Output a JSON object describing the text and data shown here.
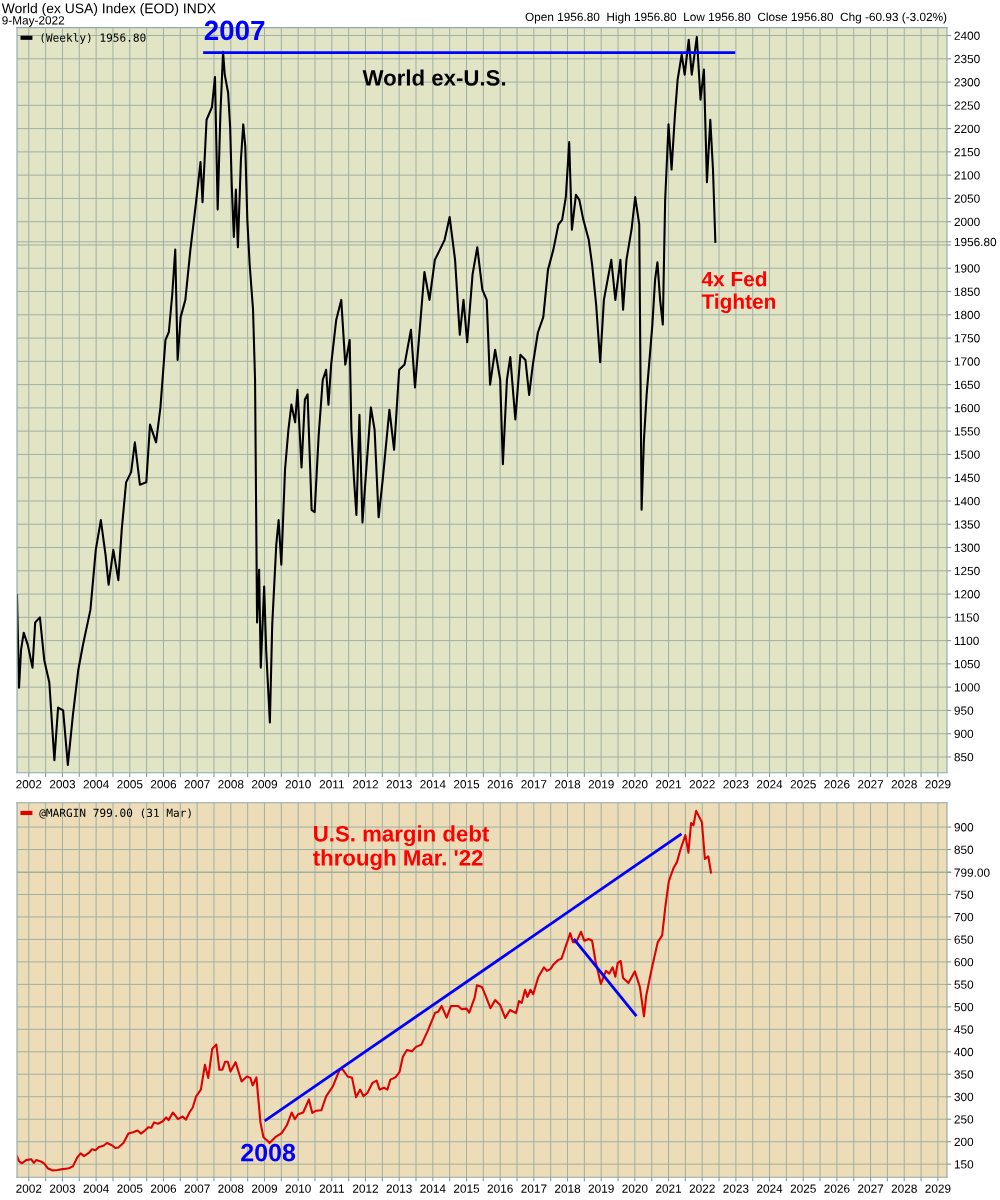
{
  "chart_data": [
    {
      "type": "line",
      "title": "World (ex USA) Index (EOD) INDX",
      "subtitle": "9-May-2022",
      "annotations": [
        "Open 1956.80  High 1956.80  Low 1956.80  Close 1956.80  Chg -60.93 (-3.02%)",
        "2007",
        "World ex-U.S.",
        "4x Fed\nTighten"
      ],
      "xlim": [
        2001.65,
        2029.27
      ],
      "xticks": [
        2002,
        {
          "value": 2002.5,
          "label": null
        },
        2003,
        {
          "value": 2003.5,
          "label": null
        },
        2004,
        {
          "value": 2004.5,
          "label": null
        },
        2005,
        {
          "value": 2005.5,
          "label": null
        },
        2006,
        {
          "value": 2006.5,
          "label": null
        },
        2007,
        {
          "value": 2007.5,
          "label": null
        },
        2008,
        {
          "value": 2008.5,
          "label": null
        },
        2009,
        {
          "value": 2009.5,
          "label": null
        },
        2010,
        {
          "value": 2010.5,
          "label": null
        },
        2011,
        {
          "value": 2011.5,
          "label": null
        },
        2012,
        {
          "value": 2012.5,
          "label": null
        },
        2013,
        {
          "value": 2013.5,
          "label": null
        },
        2014,
        {
          "value": 2014.5,
          "label": null
        },
        2015,
        {
          "value": 2015.5,
          "label": null
        },
        2016,
        {
          "value": 2016.5,
          "label": null
        },
        2017,
        {
          "value": 2017.5,
          "label": null
        },
        2018,
        {
          "value": 2018.5,
          "label": null
        },
        2019,
        {
          "value": 2019.5,
          "label": null
        },
        2020,
        {
          "value": 2020.5,
          "label": null
        },
        2021,
        {
          "value": 2021.5,
          "label": null
        },
        2022,
        {
          "value": 2022.5,
          "label": null
        },
        2023,
        {
          "value": 2023.5,
          "label": null
        },
        2024,
        {
          "value": 2024.5,
          "label": null
        },
        2025,
        {
          "value": 2025.5,
          "label": null
        },
        2026,
        {
          "value": 2026.5,
          "label": null
        },
        2027,
        {
          "value": 2027.5,
          "label": null
        },
        2028,
        {
          "value": 2028.5,
          "label": null
        },
        2029
      ],
      "ylim": [
        816,
        2417
      ],
      "yticks": [
        850,
        900,
        950,
        1000,
        1050,
        1100,
        1150,
        1200,
        1250,
        1300,
        1350,
        1400,
        1450,
        1500,
        1550,
        1600,
        1650,
        1700,
        1750,
        1800,
        1850,
        1900,
        {
          "value": 1950,
          "label": null
        },
        {
          "value": 1956.8,
          "label": "1956.80"
        },
        2000,
        2050,
        2100,
        2150,
        2200,
        2250,
        2300,
        2350,
        2400
      ],
      "grid": true,
      "legend": "top left",
      "series": [
        {
          "name": "(Weekly) 1956.80",
          "color": "#000000",
          "x": [
            2001.65,
            2001.71,
            2001.77,
            2001.85,
            2001.97,
            2002.11,
            2002.19,
            2002.33,
            2002.46,
            2002.61,
            2002.76,
            2002.87,
            2003.02,
            2003.16,
            2003.31,
            2003.47,
            2003.61,
            2003.83,
            2003.99,
            2004.14,
            2004.28,
            2004.37,
            2004.51,
            2004.66,
            2004.76,
            2004.89,
            2005.04,
            2005.15,
            2005.3,
            2005.49,
            2005.6,
            2005.78,
            2005.91,
            2006.06,
            2006.16,
            2006.26,
            2006.35,
            2006.42,
            2006.51,
            2006.65,
            2006.8,
            2006.96,
            2007.1,
            2007.16,
            2007.28,
            2007.44,
            2007.53,
            2007.61,
            2007.69,
            2007.77,
            2007.82,
            2007.92,
            2007.98,
            2008.03,
            2008.09,
            2008.15,
            2008.21,
            2008.3,
            2008.37,
            2008.43,
            2008.49,
            2008.56,
            2008.66,
            2008.72,
            2008.78,
            2008.84,
            2008.89,
            2008.99,
            2009.05,
            2009.16,
            2009.23,
            2009.35,
            2009.42,
            2009.5,
            2009.61,
            2009.71,
            2009.8,
            2009.91,
            2009.98,
            2010.1,
            2010.2,
            2010.28,
            2010.4,
            2010.49,
            2010.61,
            2010.73,
            2010.83,
            2010.9,
            2010.98,
            2011.13,
            2011.28,
            2011.4,
            2011.53,
            2011.58,
            2011.66,
            2011.73,
            2011.82,
            2011.91,
            2012.0,
            2012.16,
            2012.27,
            2012.39,
            2012.51,
            2012.71,
            2012.85,
            2013.0,
            2013.16,
            2013.35,
            2013.47,
            2013.61,
            2013.75,
            2013.9,
            2014.06,
            2014.21,
            2014.35,
            2014.5,
            2014.66,
            2014.8,
            2014.91,
            2015.02,
            2015.18,
            2015.32,
            2015.47,
            2015.6,
            2015.7,
            2015.85,
            2016.0,
            2016.08,
            2016.2,
            2016.3,
            2016.45,
            2016.6,
            2016.75,
            2016.86,
            2016.97,
            2017.12,
            2017.28,
            2017.42,
            2017.58,
            2017.73,
            2017.84,
            2017.95,
            2018.05,
            2018.13,
            2018.25,
            2018.35,
            2018.47,
            2018.63,
            2018.73,
            2018.85,
            2018.97,
            2019.08,
            2019.3,
            2019.42,
            2019.57,
            2019.65,
            2019.75,
            2019.9,
            2020.01,
            2020.13,
            2020.2,
            2020.27,
            2020.35,
            2020.52,
            2020.6,
            2020.67,
            2020.75,
            2020.83,
            2020.86,
            2020.9,
            2021.0,
            2021.09,
            2021.19,
            2021.27,
            2021.39,
            2021.48,
            2021.6,
            2021.69,
            2021.84,
            2021.95,
            2022.05,
            2022.14,
            2022.24,
            2022.32,
            2022.39
          ],
          "values": [
            1198,
            999,
            1080,
            1117,
            1091,
            1042,
            1139,
            1150,
            1058,
            1010,
            843,
            956,
            950,
            833,
            940,
            1037,
            1091,
            1166,
            1295,
            1359,
            1284,
            1220,
            1295,
            1230,
            1338,
            1440,
            1462,
            1526,
            1435,
            1440,
            1564,
            1526,
            1601,
            1746,
            1763,
            1843,
            1940,
            1703,
            1795,
            1832,
            1940,
            2037,
            2128,
            2042,
            2219,
            2246,
            2311,
            2026,
            2230,
            2365,
            2316,
            2277,
            2203,
            2074,
            1967,
            2069,
            1945,
            2133,
            2209,
            2161,
            2004,
            1908,
            1811,
            1660,
            1139,
            1252,
            1042,
            1216,
            1080,
            924,
            1134,
            1306,
            1359,
            1263,
            1467,
            1553,
            1607,
            1569,
            1639,
            1472,
            1618,
            1629,
            1381,
            1376,
            1542,
            1660,
            1682,
            1607,
            1693,
            1789,
            1832,
            1693,
            1746,
            1553,
            1445,
            1370,
            1585,
            1354,
            1445,
            1601,
            1553,
            1365,
            1445,
            1596,
            1510,
            1682,
            1693,
            1768,
            1644,
            1768,
            1892,
            1832,
            1918,
            1940,
            1961,
            2010,
            1918,
            1757,
            1832,
            1741,
            1887,
            1945,
            1854,
            1832,
            1650,
            1725,
            1660,
            1479,
            1660,
            1709,
            1575,
            1714,
            1703,
            1628,
            1693,
            1762,
            1795,
            1897,
            1940,
            1994,
            2004,
            2053,
            2171,
            1983,
            2058,
            2047,
            2004,
            1961,
            1908,
            1822,
            1698,
            1832,
            1918,
            1832,
            1918,
            1811,
            1918,
            1983,
            2053,
            1994,
            1381,
            1532,
            1629,
            1779,
            1875,
            1913,
            1832,
            1779,
            1897,
            2047,
            2209,
            2112,
            2230,
            2305,
            2359,
            2316,
            2391,
            2316,
            2397,
            2262,
            2327,
            2085,
            2219,
            2112,
            1956.8
          ],
          "value_labels": [
            null,
            null,
            null,
            null,
            null,
            null,
            null,
            null,
            null,
            null,
            null,
            null,
            null,
            null,
            null,
            null,
            null,
            null,
            null,
            null,
            null,
            null,
            null,
            null,
            null,
            null,
            null,
            null,
            null,
            null,
            null,
            null,
            null,
            null,
            null,
            null,
            null,
            null,
            null,
            null,
            null,
            null,
            null,
            null,
            null,
            null,
            null,
            null,
            null,
            null,
            null,
            null,
            null,
            null,
            null,
            null,
            null,
            null,
            null,
            null,
            null,
            null,
            null,
            null,
            null,
            null,
            null,
            null,
            null,
            null,
            null,
            null,
            null,
            null,
            null,
            null,
            null,
            null,
            null,
            null,
            null,
            null,
            null,
            null,
            null,
            null,
            null,
            null,
            null,
            null,
            null,
            null,
            null,
            null,
            null,
            null,
            null,
            null,
            null,
            null,
            null,
            null,
            null,
            null,
            null,
            null,
            null,
            null,
            null,
            null,
            null,
            null,
            null,
            null,
            null,
            null,
            null,
            null,
            null,
            null,
            null,
            null,
            null,
            null,
            null,
            null,
            null,
            null,
            null,
            null,
            null,
            null,
            null,
            null,
            null,
            null,
            null,
            null,
            null,
            null,
            null,
            null,
            null,
            null,
            null,
            null,
            null,
            null,
            null,
            null,
            null,
            null,
            null,
            null,
            null,
            null,
            null,
            null,
            null,
            null,
            null,
            null,
            null,
            null,
            null,
            null,
            null,
            null,
            null,
            null,
            null,
            null,
            null,
            null,
            null,
            null,
            null,
            null,
            null,
            null,
            null,
            null,
            null,
            null,
            null
          ]
        },
        {
          "color": "#0000ff",
          "x": [
            2007.22,
            2022.94
          ],
          "values": [
            2363,
            2363
          ]
        }
      ]
    },
    {
      "type": "line",
      "annotations": [
        "U.S. margin debt\nthrough Mar. '22",
        "2008"
      ],
      "xlim": [
        2001.65,
        2029.27
      ],
      "xticks": [
        2002,
        {
          "value": 2002.5,
          "label": null
        },
        2003,
        {
          "value": 2003.5,
          "label": null
        },
        2004,
        {
          "value": 2004.5,
          "label": null
        },
        2005,
        {
          "value": 2005.5,
          "label": null
        },
        2006,
        {
          "value": 2006.5,
          "label": null
        },
        2007,
        {
          "value": 2007.5,
          "label": null
        },
        2008,
        {
          "value": 2008.5,
          "label": null
        },
        2009,
        {
          "value": 2009.5,
          "label": null
        },
        2010,
        {
          "value": 2010.5,
          "label": null
        },
        2011,
        {
          "value": 2011.5,
          "label": null
        },
        2012,
        {
          "value": 2012.5,
          "label": null
        },
        2013,
        {
          "value": 2013.5,
          "label": null
        },
        2014,
        {
          "value": 2014.5,
          "label": null
        },
        2015,
        {
          "value": 2015.5,
          "label": null
        },
        2016,
        {
          "value": 2016.5,
          "label": null
        },
        2017,
        {
          "value": 2017.5,
          "label": null
        },
        2018,
        {
          "value": 2018.5,
          "label": null
        },
        2019,
        {
          "value": 2019.5,
          "label": null
        },
        2020,
        {
          "value": 2020.5,
          "label": null
        },
        2021,
        {
          "value": 2021.5,
          "label": null
        },
        2022,
        {
          "value": 2022.5,
          "label": null
        },
        2023,
        {
          "value": 2023.5,
          "label": null
        },
        2024,
        {
          "value": 2024.5,
          "label": null
        },
        2025,
        {
          "value": 2025.5,
          "label": null
        },
        2026,
        {
          "value": 2026.5,
          "label": null
        },
        2027,
        {
          "value": 2027.5,
          "label": null
        },
        2028,
        {
          "value": 2028.5,
          "label": null
        },
        2029
      ],
      "ylim": [
        121,
        954
      ],
      "yticks": [
        150,
        200,
        250,
        300,
        350,
        400,
        450,
        500,
        550,
        600,
        650,
        700,
        750,
        {
          "value": 799,
          "label": "799.00"
        },
        {
          "value": 800,
          "label": null
        },
        850,
        900
      ],
      "grid": true,
      "legend": "top left",
      "series": [
        {
          "name": "@MARGIN 799.00 (31 Mar)",
          "color": "#e00000",
          "x": [
            2001.65,
            2001.71,
            2001.8,
            2001.92,
            2002.07,
            2002.15,
            2002.22,
            2002.36,
            2002.46,
            2002.56,
            2002.71,
            2002.85,
            2003.0,
            2003.1,
            2003.19,
            2003.31,
            2003.44,
            2003.54,
            2003.64,
            2003.78,
            2003.88,
            2003.98,
            2004.08,
            2004.22,
            2004.32,
            2004.47,
            2004.57,
            2004.66,
            2004.81,
            2004.96,
            2005.1,
            2005.23,
            2005.33,
            2005.45,
            2005.55,
            2005.64,
            2005.72,
            2005.84,
            2005.97,
            2006.08,
            2006.15,
            2006.28,
            2006.43,
            2006.57,
            2006.67,
            2006.77,
            2006.87,
            2006.97,
            2007.11,
            2007.23,
            2007.33,
            2007.45,
            2007.57,
            2007.66,
            2007.75,
            2007.83,
            2007.91,
            2007.99,
            2008.14,
            2008.32,
            2008.48,
            2008.58,
            2008.65,
            2008.76,
            2008.88,
            2008.97,
            2009.07,
            2009.15,
            2009.32,
            2009.51,
            2009.66,
            2009.81,
            2009.9,
            2010.0,
            2010.15,
            2010.32,
            2010.42,
            2010.54,
            2010.69,
            2010.83,
            2011.03,
            2011.23,
            2011.32,
            2011.47,
            2011.6,
            2011.72,
            2011.84,
            2011.94,
            2012.06,
            2012.21,
            2012.33,
            2012.42,
            2012.55,
            2012.65,
            2012.74,
            2012.89,
            2013.01,
            2013.11,
            2013.23,
            2013.38,
            2013.5,
            2013.66,
            2013.85,
            2014.07,
            2014.16,
            2014.26,
            2014.41,
            2014.54,
            2014.75,
            2014.85,
            2015.0,
            2015.08,
            2015.24,
            2015.31,
            2015.46,
            2015.56,
            2015.71,
            2015.85,
            2016.0,
            2016.15,
            2016.29,
            2016.47,
            2016.56,
            2016.64,
            2016.74,
            2016.81,
            2016.9,
            2016.98,
            2017.13,
            2017.3,
            2017.39,
            2017.49,
            2017.59,
            2017.72,
            2017.82,
            2018.08,
            2018.16,
            2018.26,
            2018.4,
            2018.5,
            2018.63,
            2018.73,
            2018.83,
            2018.99,
            2019.14,
            2019.24,
            2019.34,
            2019.42,
            2019.49,
            2019.58,
            2019.65,
            2019.81,
            2020.0,
            2020.15,
            2020.27,
            2020.34,
            2020.51,
            2020.68,
            2020.81,
            2020.91,
            2021.01,
            2021.15,
            2021.25,
            2021.35,
            2021.5,
            2021.59,
            2021.67,
            2021.74,
            2021.82,
            2021.99,
            2022.08,
            2022.18,
            2022.26
          ],
          "values": [
            168,
            156,
            152,
            159,
            161,
            153,
            159,
            156,
            151,
            141,
            136,
            137,
            139,
            140,
            141,
            145,
            165,
            174,
            168,
            175,
            183,
            181,
            188,
            191,
            197,
            192,
            186,
            187,
            197,
            218,
            221,
            225,
            218,
            225,
            232,
            231,
            243,
            240,
            245,
            254,
            248,
            265,
            250,
            256,
            249,
            265,
            276,
            301,
            316,
            371,
            342,
            407,
            416,
            360,
            360,
            378,
            378,
            356,
            377,
            334,
            345,
            342,
            325,
            343,
            243,
            210,
            203,
            197,
            210,
            219,
            236,
            265,
            250,
            261,
            265,
            294,
            264,
            269,
            270,
            301,
            323,
            360,
            361,
            345,
            342,
            299,
            316,
            301,
            309,
            331,
            336,
            316,
            320,
            316,
            338,
            343,
            355,
            389,
            404,
            401,
            411,
            416,
            447,
            487,
            489,
            502,
            476,
            502,
            502,
            495,
            496,
            487,
            520,
            548,
            544,
            526,
            497,
            515,
            504,
            475,
            493,
            486,
            513,
            509,
            538,
            522,
            538,
            528,
            566,
            588,
            580,
            584,
            595,
            604,
            607,
            664,
            644,
            644,
            667,
            647,
            651,
            647,
            602,
            551,
            580,
            574,
            588,
            567,
            598,
            602,
            564,
            553,
            579,
            544,
            479,
            526,
            588,
            644,
            659,
            726,
            780,
            809,
            822,
            849,
            882,
            843,
            909,
            904,
            936,
            911,
            829,
            835,
            799
          ],
          "value_labels": [
            null,
            null,
            null,
            null,
            null,
            null,
            null,
            null,
            null,
            null,
            null,
            null,
            null,
            null,
            null,
            null,
            null,
            null,
            null,
            null,
            null,
            null,
            null,
            null,
            null,
            null,
            null,
            null,
            null,
            null,
            null,
            null,
            null,
            null,
            null,
            null,
            null,
            null,
            null,
            null,
            null,
            null,
            null,
            null,
            null,
            null,
            null,
            null,
            null,
            null,
            null,
            null,
            null,
            null,
            null,
            null,
            null,
            null,
            null,
            null,
            null,
            null,
            null,
            null,
            null,
            null,
            null,
            null,
            null,
            null,
            null,
            null,
            null,
            null,
            null,
            null,
            null,
            null,
            null,
            null,
            null,
            null,
            null,
            null,
            null,
            null,
            null,
            null,
            null,
            null,
            null,
            null,
            null,
            null,
            null,
            null,
            null,
            null,
            null,
            null,
            null,
            null,
            null,
            null,
            null,
            null,
            null,
            null,
            null,
            null,
            null,
            null,
            null,
            null,
            null,
            null,
            null,
            null,
            null,
            null,
            null,
            null,
            null,
            null,
            null,
            null,
            null,
            null,
            null,
            null,
            null,
            null,
            null,
            null,
            null,
            null,
            null,
            null,
            null,
            null,
            null,
            null,
            null,
            null,
            null,
            null,
            null,
            null,
            null,
            null,
            null,
            null,
            null,
            null,
            null,
            null,
            null,
            null,
            null,
            null,
            null,
            null,
            null,
            null,
            null,
            null,
            null,
            null,
            null,
            null,
            null,
            null,
            null
          ]
        },
        {
          "color": "#0000ff",
          "x": [
            2009.04,
            2021.35
          ],
          "values": [
            248,
            883
          ]
        },
        {
          "color": "#0000ff",
          "x": [
            2018.21,
            2020.02
          ],
          "values": [
            649,
            482
          ]
        }
      ]
    }
  ]
}
